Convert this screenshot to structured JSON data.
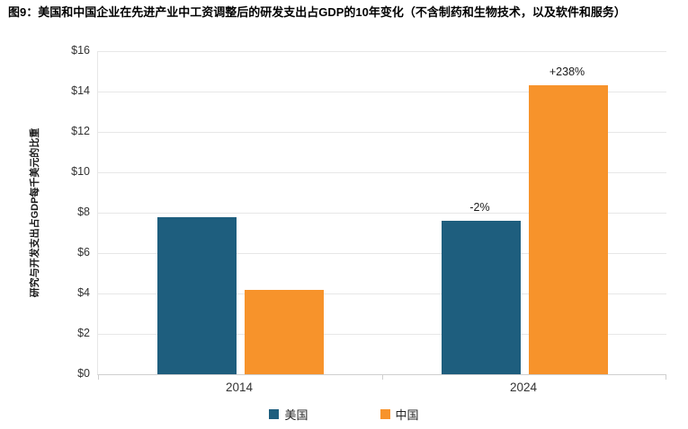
{
  "title": "图9：美国和中国企业在先进产业中工资调整后的研发支出占GDP的10年变化（不含制药和生物技术，以及软件和服务）",
  "chart_data": {
    "type": "bar",
    "categories": [
      "2014",
      "2024"
    ],
    "series": [
      {
        "name": "美国",
        "color": "#1e5e7e",
        "values": [
          7.8,
          7.6
        ]
      },
      {
        "name": "中国",
        "color": "#f7932b",
        "values": [
          4.2,
          14.3
        ]
      }
    ],
    "annotations": [
      {
        "category_index": 1,
        "series_index": 0,
        "text": "-2%"
      },
      {
        "category_index": 1,
        "series_index": 1,
        "text": "+238%"
      }
    ],
    "ylabel": "研究与开发支出占GDP每千美元的比重",
    "xlabel": "",
    "ylim": [
      0,
      16
    ],
    "ytick_step": 2,
    "yticks": [
      "$0",
      "$2",
      "$4",
      "$6",
      "$8",
      "$10",
      "$12",
      "$14",
      "$16"
    ],
    "grid": true,
    "legend_position": "bottom"
  }
}
